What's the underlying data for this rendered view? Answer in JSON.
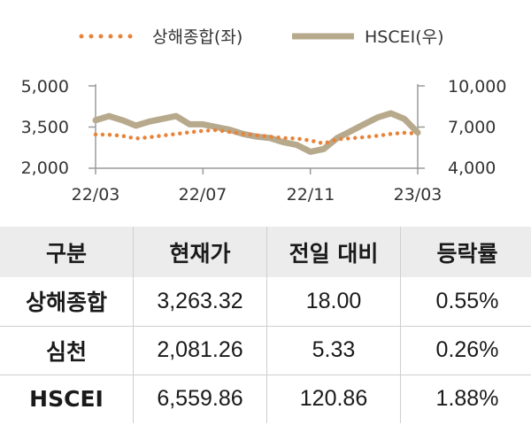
{
  "chart_data": {
    "type": "line",
    "legend": {
      "placement": "top-center"
    },
    "x_ticks": [
      "22/03",
      "22/07",
      "22/11",
      "23/03"
    ],
    "y_left": {
      "range": [
        2000,
        5000
      ],
      "ticks": [
        "5,000",
        "3,500",
        "2,000"
      ],
      "tick_values": [
        5000,
        3500,
        2000
      ]
    },
    "y_right": {
      "range": [
        4000,
        10000
      ],
      "ticks": [
        "10,000",
        "7,000",
        "4,000"
      ],
      "tick_values": [
        10000,
        7000,
        4000
      ]
    },
    "grid": false,
    "series": [
      {
        "name": "상해종합(좌)",
        "axis": "left",
        "color": "#e8833a",
        "style": "dotted",
        "x": [
          0,
          0.5,
          1,
          1.5,
          2,
          2.5,
          3,
          3.5,
          4,
          4.5,
          5,
          5.5,
          6,
          6.5,
          7,
          7.5,
          8,
          8.5,
          9,
          9.5,
          10,
          10.5,
          11,
          11.5,
          12
        ],
        "values": [
          3230,
          3220,
          3180,
          3080,
          3130,
          3190,
          3250,
          3310,
          3360,
          3390,
          3320,
          3250,
          3200,
          3150,
          3100,
          3080,
          3010,
          2900,
          3050,
          3090,
          3130,
          3180,
          3250,
          3290,
          3260
        ]
      },
      {
        "name": "HSCEI(우)",
        "axis": "right",
        "color": "#b7a98c",
        "style": "solid",
        "x": [
          0,
          0.5,
          1,
          1.5,
          2,
          2.5,
          3,
          3.5,
          4,
          4.5,
          5,
          5.5,
          6,
          6.5,
          7,
          7.5,
          8,
          8.5,
          9,
          9.5,
          10,
          10.5,
          11,
          11.5,
          12
        ],
        "values": [
          7500,
          7800,
          7500,
          7100,
          7400,
          7600,
          7800,
          7200,
          7200,
          7000,
          6800,
          6500,
          6300,
          6200,
          5900,
          5700,
          5200,
          5400,
          6200,
          6700,
          7200,
          7700,
          8000,
          7600,
          6600
        ]
      }
    ]
  },
  "table": {
    "headers": [
      "구분",
      "현재가",
      "전일 대비",
      "등락률"
    ],
    "rows": [
      [
        "상해종합",
        "3,263.32",
        "18.00",
        "0.55%"
      ],
      [
        "심천",
        "2,081.26",
        "5.33",
        "0.26%"
      ],
      [
        "HSCEI",
        "6,559.86",
        "120.86",
        "1.88%"
      ]
    ]
  }
}
